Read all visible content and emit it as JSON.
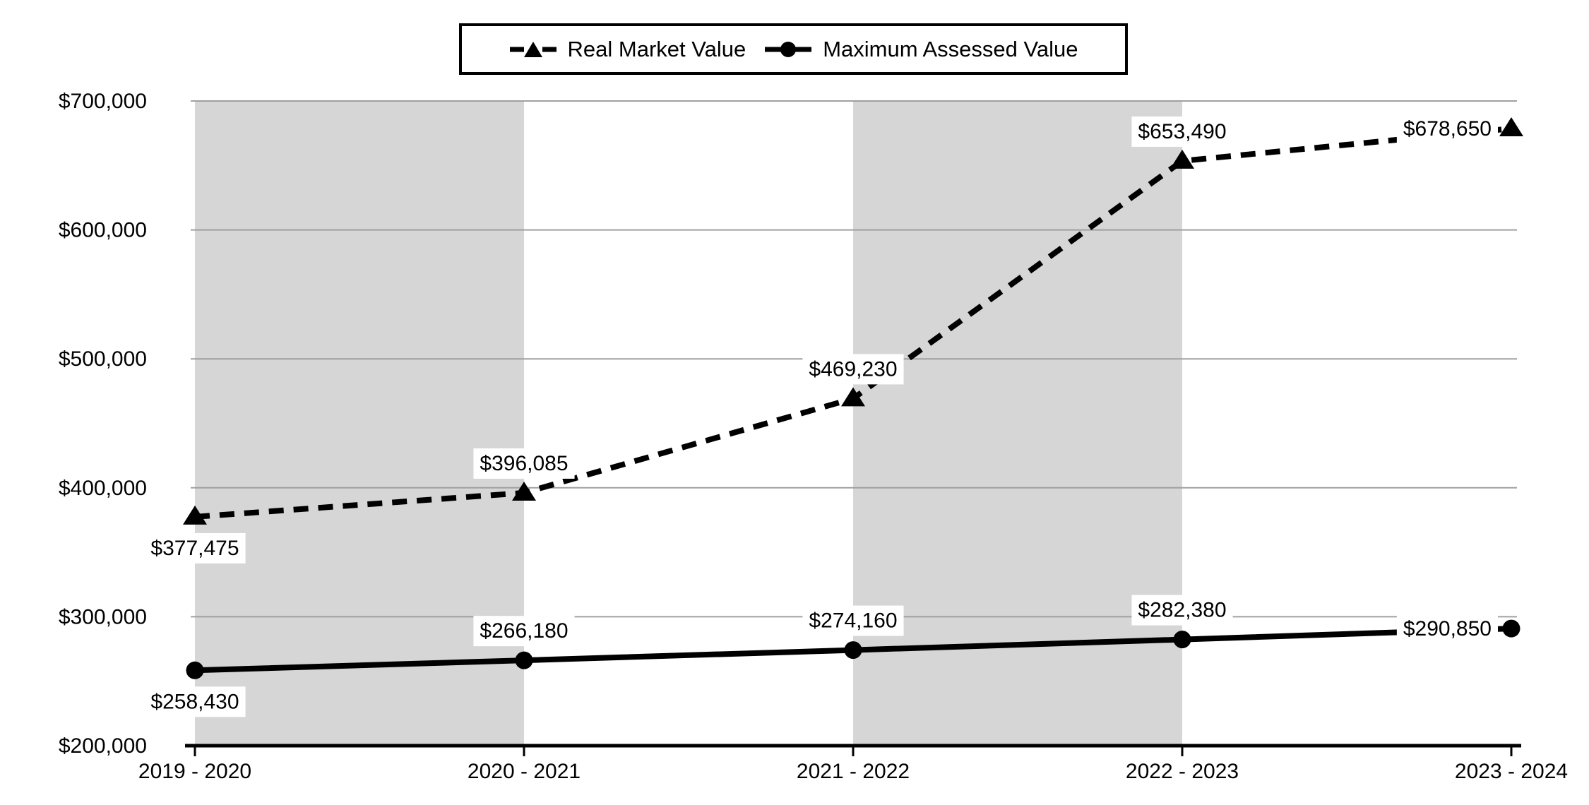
{
  "legend": {
    "items": [
      {
        "label": "Real Market Value",
        "marker": "triangle",
        "line": "dashed"
      },
      {
        "label": "Maximum Assessed Value",
        "marker": "circle",
        "line": "solid"
      }
    ]
  },
  "chart_data": {
    "type": "line",
    "categories": [
      "2019 - 2020",
      "2020 - 2021",
      "2021 - 2022",
      "2022 - 2023",
      "2023 - 2024"
    ],
    "series": [
      {
        "name": "Real Market Value",
        "line_style": "dashed",
        "marker": "triangle",
        "values": [
          377475,
          396085,
          469230,
          653490,
          678650
        ],
        "labels": [
          "$377,475",
          "$396,085",
          "$469,230",
          "$653,490",
          "$678,650"
        ]
      },
      {
        "name": "Maximum Assessed Value",
        "line_style": "solid",
        "marker": "circle",
        "values": [
          258430,
          266180,
          274160,
          282380,
          290850
        ],
        "labels": [
          "$258,430",
          "$266,180",
          "$274,160",
          "$282,380",
          "$290,850"
        ]
      }
    ],
    "title": "",
    "xlabel": "",
    "ylabel": "",
    "ylim": [
      200000,
      700000
    ],
    "y_ticks": [
      {
        "value": 700000,
        "label": "$700,000"
      },
      {
        "value": 600000,
        "label": "$600,000"
      },
      {
        "value": 500000,
        "label": "$500,000"
      },
      {
        "value": 400000,
        "label": "$400,000"
      },
      {
        "value": 300000,
        "label": "$300,000"
      },
      {
        "value": 200000,
        "label": "$200,000"
      }
    ],
    "grid": true,
    "legend_position": "top",
    "plot_bands": {
      "pairs": [
        [
          0,
          1
        ],
        [
          2,
          3
        ]
      ],
      "color": "#d6d6d6"
    },
    "colors": {
      "series": "#000000",
      "gridline": "#a0a0a0",
      "axis": "#000000",
      "band": "#d6d6d6",
      "background": "#ffffff",
      "label_background": "#ffffff"
    }
  }
}
